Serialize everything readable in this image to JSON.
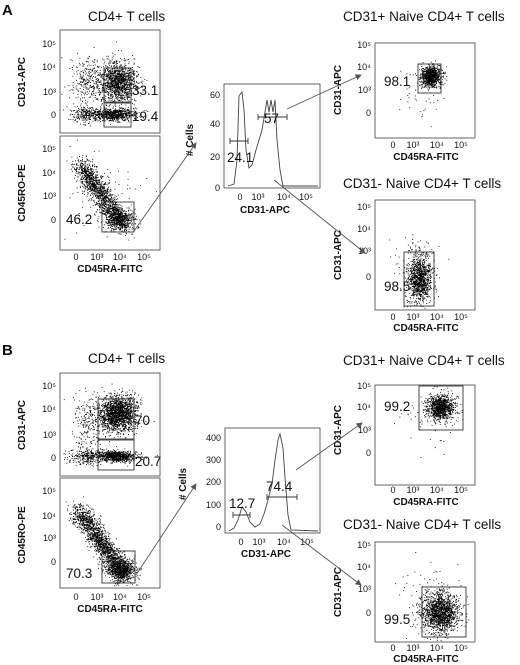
{
  "panels": [
    {
      "letter": "A",
      "plots": [
        {
          "id": "A1",
          "title": "CD4+ T cells",
          "xlabel": "",
          "ylabel": "CD31-APC",
          "xticks": [],
          "yticks": [
            "0",
            "10³",
            "10⁴",
            "10⁵"
          ],
          "gates": [
            {
              "label": "33.1",
              "value": 33.1
            },
            {
              "label": "19.4",
              "value": 19.4
            }
          ]
        },
        {
          "id": "A2",
          "title": "",
          "xlabel": "CD45RA-FITC",
          "ylabel": "CD45RO-PE",
          "xticks": [
            "0",
            "10³",
            "10⁴",
            "10⁵"
          ],
          "yticks": [
            "0",
            "10³",
            "10⁴",
            "10⁵"
          ],
          "gates": [
            {
              "label": "46.2",
              "value": 46.2
            }
          ]
        },
        {
          "id": "A3",
          "title": "",
          "xlabel": "CD31-APC",
          "ylabel": "# Cells",
          "xticks": [
            "0",
            "10³",
            "10⁴",
            "10⁵"
          ],
          "yticks": [
            "0",
            "20",
            "40",
            "60"
          ],
          "gates": [
            {
              "label": "24.1",
              "value": 24.1
            },
            {
              "label": "57",
              "value": 57
            }
          ]
        },
        {
          "id": "A4",
          "title": "CD31+ Naive CD4+ T cells",
          "xlabel": "CD45RA-FITC",
          "ylabel": "CD31-APC",
          "xticks": [
            "0",
            "10³",
            "10⁴",
            "10⁵"
          ],
          "yticks": [
            "0",
            "10³",
            "10⁴",
            "10⁵"
          ],
          "gates": [
            {
              "label": "98.1",
              "value": 98.1
            }
          ]
        },
        {
          "id": "A5",
          "title": "CD31- Naive CD4+ T cells",
          "xlabel": "CD45RA-FITC",
          "ylabel": "CD31-APC",
          "xticks": [
            "0",
            "10³",
            "10⁴",
            "10⁵"
          ],
          "yticks": [
            "0",
            "10³",
            "10⁴",
            "10⁵"
          ],
          "gates": [
            {
              "label": "98.5",
              "value": 98.5
            }
          ]
        }
      ]
    },
    {
      "letter": "B",
      "plots": [
        {
          "id": "B1",
          "title": "CD4+ T cells",
          "xlabel": "",
          "ylabel": "CD31-APC",
          "xticks": [],
          "yticks": [
            "0",
            "10³",
            "10⁴",
            "10⁵"
          ],
          "gates": [
            {
              "label": "70",
              "value": 70
            },
            {
              "label": "20.7",
              "value": 20.7
            }
          ]
        },
        {
          "id": "B2",
          "title": "",
          "xlabel": "CD45RA-FITC",
          "ylabel": "CD45RO-PE",
          "xticks": [
            "0",
            "10³",
            "10⁴",
            "10⁵"
          ],
          "yticks": [
            "0",
            "10³",
            "10⁴",
            "10⁵"
          ],
          "gates": [
            {
              "label": "70.3",
              "value": 70.3
            }
          ]
        },
        {
          "id": "B3",
          "title": "",
          "xlabel": "CD31-APC",
          "ylabel": "# Cells",
          "xticks": [
            "0",
            "10³",
            "10⁴",
            "10⁵"
          ],
          "yticks": [
            "0",
            "100",
            "200",
            "300",
            "400"
          ],
          "gates": [
            {
              "label": "12.7",
              "value": 12.7
            },
            {
              "label": "74.4",
              "value": 74.4
            }
          ]
        },
        {
          "id": "B4",
          "title": "CD31+ Naive CD4+ T cells",
          "xlabel": "CD45RA-FITC",
          "ylabel": "CD31-APC",
          "xticks": [
            "0",
            "10³",
            "10⁴",
            "10⁵"
          ],
          "yticks": [
            "0",
            "10³",
            "10⁴",
            "10⁵"
          ],
          "gates": [
            {
              "label": "99.2",
              "value": 99.2
            }
          ]
        },
        {
          "id": "B5",
          "title": "CD31- Naive CD4+ T cells",
          "xlabel": "CD45RA-FITC",
          "ylabel": "CD31-APC",
          "xticks": [
            "0",
            "10³",
            "10⁴",
            "10⁵"
          ],
          "yticks": [
            "0",
            "10³",
            "10⁴",
            "10⁵"
          ],
          "gates": [
            {
              "label": "99.5",
              "value": 99.5
            }
          ]
        }
      ]
    }
  ],
  "chart_data": {
    "type": "scatter",
    "description_values": {
      "A": {
        "cd31_pos_gate_pct": 33.1,
        "cd31_neg_gate_pct": 19.4,
        "naive_gate_pct": 46.2,
        "hist_cd31_neg_pct": 24.1,
        "hist_cd31_pos_pct": 57,
        "cd31_pos_naive_purity_pct": 98.1,
        "cd31_neg_naive_purity_pct": 98.5,
        "hist_ylim": [
          0,
          65
        ]
      },
      "B": {
        "cd31_pos_gate_pct": 70,
        "cd31_neg_gate_pct": 20.7,
        "naive_gate_pct": 70.3,
        "hist_cd31_neg_pct": 12.7,
        "hist_cd31_pos_pct": 74.4,
        "cd31_pos_naive_purity_pct": 99.2,
        "cd31_neg_naive_purity_pct": 99.5,
        "hist_ylim": [
          0,
          450
        ]
      }
    }
  }
}
